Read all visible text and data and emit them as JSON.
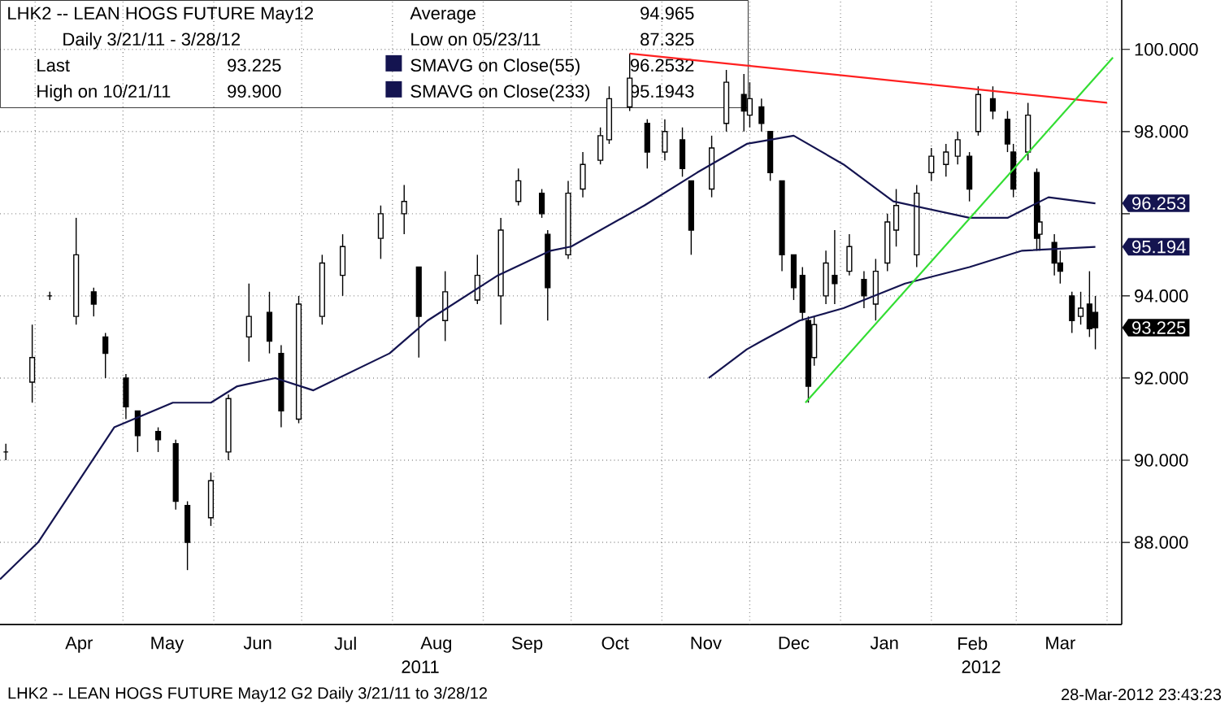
{
  "chart_data": {
    "type": "candlestick",
    "title": "LHK2 -- LEAN HOGS FUTURE  May12",
    "subtitle": "Daily 3/21/11 - 3/28/12",
    "xlim": [
      "2011-03-20",
      "2012-04-06"
    ],
    "ylim": [
      86,
      101.2
    ],
    "xticks": [
      {
        "value": "2011-04-01",
        "label": null
      },
      {
        "value": "2011-04-16",
        "label": "Apr"
      },
      {
        "value": "2011-05-01",
        "label": null
      },
      {
        "value": "2011-05-16",
        "label": "May"
      },
      {
        "value": "2011-06-01",
        "label": null
      },
      {
        "value": "2011-06-16",
        "label": "Jun"
      },
      {
        "value": "2011-07-01",
        "label": null
      },
      {
        "value": "2011-07-16",
        "label": "Jul"
      },
      {
        "value": "2011-08-01",
        "label": null
      },
      {
        "value": "2011-08-16",
        "label": "Aug"
      },
      {
        "value": "2011-09-01",
        "label": null
      },
      {
        "value": "2011-09-16",
        "label": "Sep"
      },
      {
        "value": "2011-10-01",
        "label": null
      },
      {
        "value": "2011-10-16",
        "label": "Oct"
      },
      {
        "value": "2011-11-01",
        "label": null
      },
      {
        "value": "2011-11-16",
        "label": "Nov"
      },
      {
        "value": "2011-12-01",
        "label": null
      },
      {
        "value": "2011-12-16",
        "label": "Dec"
      },
      {
        "value": "2012-01-01",
        "label": null
      },
      {
        "value": "2012-01-16",
        "label": "Jan"
      },
      {
        "value": "2012-02-01",
        "label": null
      },
      {
        "value": "2012-02-15",
        "label": "Feb"
      },
      {
        "value": "2012-03-01",
        "label": null
      },
      {
        "value": "2012-03-16",
        "label": "Mar"
      },
      {
        "value": "2012-04-01",
        "label": null
      }
    ],
    "yticks": [
      {
        "value": 88,
        "label": "88.000"
      },
      {
        "value": 90,
        "label": "90.000"
      },
      {
        "value": 92,
        "label": "92.000"
      },
      {
        "value": 94,
        "label": "94.000"
      },
      {
        "value": 96,
        "label": null
      },
      {
        "value": 98,
        "label": "98.000"
      },
      {
        "value": 100,
        "label": "100.000"
      }
    ],
    "grid": true,
    "legend": "top left",
    "series": [
      {
        "color": "#000000",
        "x": [
          "2011-03-22",
          "2011-03-31",
          "2011-04-06",
          "2011-04-15",
          "2011-04-21",
          "2011-04-25",
          "2011-05-02",
          "2011-05-06",
          "2011-05-13",
          "2011-05-19",
          "2011-05-23",
          "2011-05-31",
          "2011-06-06",
          "2011-06-13",
          "2011-06-20",
          "2011-06-24",
          "2011-06-30",
          "2011-07-08",
          "2011-07-15",
          "2011-07-28",
          "2011-08-05",
          "2011-08-10",
          "2011-08-19",
          "2011-08-30",
          "2011-09-07",
          "2011-09-13",
          "2011-09-21",
          "2011-09-23",
          "2011-09-30",
          "2011-10-05",
          "2011-10-11",
          "2011-10-14",
          "2011-10-21",
          "2011-10-27",
          "2011-11-02",
          "2011-11-08",
          "2011-11-11",
          "2011-11-18",
          "2011-11-23",
          "2011-11-29",
          "2011-12-01",
          "2011-12-05",
          "2011-12-08",
          "2011-12-12",
          "2011-12-16",
          "2011-12-19",
          "2011-12-21",
          "2011-12-23",
          "2011-12-27",
          "2011-12-30",
          "2012-01-04",
          "2012-01-09",
          "2012-01-13",
          "2012-01-17",
          "2012-01-20",
          "2012-01-27",
          "2012-02-01",
          "2012-02-06",
          "2012-02-10",
          "2012-02-14",
          "2012-02-17",
          "2012-02-22",
          "2012-02-27",
          "2012-02-29",
          "2012-03-05",
          "2012-03-08",
          "2012-03-09",
          "2012-03-14",
          "2012-03-16",
          "2012-03-20",
          "2012-03-23",
          "2012-03-26",
          "2012-03-28"
        ],
        "ohlc": [
          [
            90.2,
            90.4,
            90.0,
            90.2
          ],
          [
            91.9,
            93.3,
            91.4,
            92.5
          ],
          [
            94.0,
            94.1,
            93.9,
            94.0
          ],
          [
            93.5,
            95.9,
            93.3,
            95.0
          ],
          [
            94.1,
            94.2,
            93.5,
            93.8
          ],
          [
            93.0,
            93.1,
            92.0,
            92.6
          ],
          [
            92.0,
            92.1,
            91.0,
            91.3
          ],
          [
            91.2,
            91.2,
            90.2,
            90.6
          ],
          [
            90.7,
            90.8,
            90.2,
            90.5
          ],
          [
            90.4,
            90.5,
            88.8,
            89.0
          ],
          [
            88.9,
            89.0,
            87.325,
            88.0
          ],
          [
            88.6,
            89.7,
            88.4,
            89.5
          ],
          [
            90.2,
            91.6,
            90.0,
            91.5
          ],
          [
            93.0,
            94.3,
            92.4,
            93.5
          ],
          [
            93.6,
            94.1,
            92.6,
            92.9
          ],
          [
            92.6,
            92.8,
            90.8,
            91.2
          ],
          [
            91.0,
            94.0,
            90.9,
            93.8
          ],
          [
            93.5,
            95.0,
            93.3,
            94.8
          ],
          [
            94.5,
            95.5,
            94.0,
            95.2
          ],
          [
            95.4,
            96.2,
            94.9,
            96.0
          ],
          [
            96.0,
            96.7,
            95.5,
            96.3
          ],
          [
            94.7,
            94.7,
            92.5,
            93.5
          ],
          [
            93.4,
            94.6,
            92.9,
            94.1
          ],
          [
            93.9,
            95.0,
            93.8,
            94.5
          ],
          [
            94.0,
            95.9,
            93.3,
            95.6
          ],
          [
            96.3,
            97.1,
            96.2,
            96.8
          ],
          [
            96.5,
            96.6,
            95.9,
            96.0
          ],
          [
            95.5,
            95.6,
            93.4,
            94.2
          ],
          [
            95.0,
            96.8,
            94.9,
            96.5
          ],
          [
            96.6,
            97.5,
            96.4,
            97.2
          ],
          [
            97.3,
            98.1,
            97.2,
            97.9
          ],
          [
            97.8,
            99.1,
            97.7,
            98.8
          ],
          [
            98.6,
            99.9,
            98.5,
            99.3
          ],
          [
            98.2,
            98.3,
            97.1,
            97.5
          ],
          [
            97.5,
            98.3,
            97.3,
            98.0
          ],
          [
            97.8,
            98.1,
            96.9,
            97.1
          ],
          [
            96.8,
            96.8,
            95.0,
            95.6
          ],
          [
            96.6,
            97.9,
            96.4,
            97.6
          ],
          [
            98.2,
            99.5,
            98.0,
            99.2
          ],
          [
            98.9,
            99.4,
            98.0,
            98.5
          ],
          [
            98.4,
            99.2,
            98.1,
            98.8
          ],
          [
            98.6,
            98.8,
            98.0,
            98.2
          ],
          [
            98.0,
            98.0,
            96.8,
            97.0
          ],
          [
            96.8,
            96.8,
            94.6,
            95.0
          ],
          [
            95.0,
            95.0,
            93.9,
            94.2
          ],
          [
            94.5,
            94.7,
            93.4,
            93.6
          ],
          [
            93.4,
            93.5,
            91.4,
            91.8
          ],
          [
            92.5,
            93.5,
            92.3,
            93.3
          ],
          [
            94.0,
            95.1,
            93.8,
            94.8
          ],
          [
            94.5,
            95.6,
            93.8,
            94.3
          ],
          [
            94.6,
            95.5,
            94.5,
            95.2
          ],
          [
            94.4,
            94.6,
            93.7,
            94.0
          ],
          [
            93.8,
            94.9,
            93.4,
            94.6
          ],
          [
            94.8,
            96.0,
            94.6,
            95.8
          ],
          [
            95.6,
            96.6,
            95.2,
            96.2
          ],
          [
            95.0,
            96.7,
            94.7,
            96.5
          ],
          [
            97.0,
            97.6,
            96.8,
            97.4
          ],
          [
            97.2,
            97.7,
            96.9,
            97.5
          ],
          [
            97.4,
            98.0,
            97.2,
            97.8
          ],
          [
            97.4,
            97.5,
            96.3,
            96.6
          ],
          [
            98.0,
            99.1,
            97.9,
            98.9
          ],
          [
            98.8,
            99.1,
            98.3,
            98.5
          ],
          [
            98.3,
            98.5,
            97.5,
            97.7
          ],
          [
            97.5,
            97.7,
            96.4,
            96.6
          ],
          [
            97.5,
            98.7,
            97.3,
            98.4
          ],
          [
            97.0,
            97.1,
            95.1,
            95.4
          ],
          [
            95.5,
            96.2,
            95.1,
            95.8
          ],
          [
            95.3,
            95.5,
            94.5,
            94.8
          ],
          [
            94.8,
            95.1,
            94.3,
            94.6
          ],
          [
            94.0,
            94.1,
            93.1,
            93.4
          ],
          [
            93.5,
            94.1,
            93.3,
            93.7
          ],
          [
            93.8,
            94.6,
            93.0,
            93.2
          ],
          [
            93.6,
            94.0,
            92.7,
            93.225
          ]
        ]
      },
      {
        "type": "line",
        "name": "SMAVG on Close(55)",
        "color": "#141450",
        "x": [
          "2011-03-20",
          "2011-04-02",
          "2011-04-28",
          "2011-05-18",
          "2011-05-31",
          "2011-06-09",
          "2011-06-22",
          "2011-07-05",
          "2011-07-31",
          "2011-08-13",
          "2011-09-06",
          "2011-09-24",
          "2011-10-01",
          "2011-10-26",
          "2011-11-13",
          "2011-11-30",
          "2011-12-16",
          "2012-01-02",
          "2012-01-19",
          "2012-02-14",
          "2012-02-27",
          "2012-03-12",
          "2012-03-28"
        ],
        "values": [
          87.1,
          88.0,
          90.8,
          91.4,
          91.4,
          91.8,
          92.0,
          91.7,
          92.6,
          93.4,
          94.5,
          95.1,
          95.2,
          96.2,
          97.0,
          97.7,
          97.9,
          97.2,
          96.3,
          95.9,
          95.9,
          96.4,
          96.253
        ]
      },
      {
        "type": "line",
        "name": "SMAVG on Close(233)",
        "color": "#141450",
        "x": [
          "2011-11-17",
          "2011-11-30",
          "2011-12-05",
          "2011-12-18",
          "2012-01-02",
          "2012-01-23",
          "2012-02-14",
          "2012-03-03",
          "2012-03-28"
        ],
        "values": [
          92.0,
          92.7,
          92.9,
          93.4,
          93.7,
          94.3,
          94.7,
          95.1,
          95.194
        ]
      },
      {
        "type": "line",
        "color": "#ff2020",
        "x": [
          "2011-10-21",
          "2012-04-01"
        ],
        "values": [
          99.9,
          98.7
        ]
      },
      {
        "type": "line",
        "color": "#33dd33",
        "x": [
          "2011-12-20",
          "2012-04-03"
        ],
        "values": [
          91.4,
          99.8
        ]
      }
    ],
    "annotations": [
      "Last",
      "93.225",
      "High on 10/21/11",
      "99.900",
      "Average",
      "94.965",
      "Low on 05/23/11",
      "87.325",
      "96.2532",
      "95.1943",
      {
        "text": "96.253",
        "x": "2012-03-28",
        "y": 96.253
      },
      {
        "text": "95.194",
        "x": "2012-03-28",
        "y": 95.194
      },
      {
        "text": "93.225",
        "x": "2012-03-28",
        "y": 93.225
      },
      "2011",
      "2012",
      "LHK2 -- LEAN HOGS FUTURE  May12    G2   Daily  3/21/11 to 3/28/12",
      "28-Mar-2012 23:43:23"
    ]
  }
}
